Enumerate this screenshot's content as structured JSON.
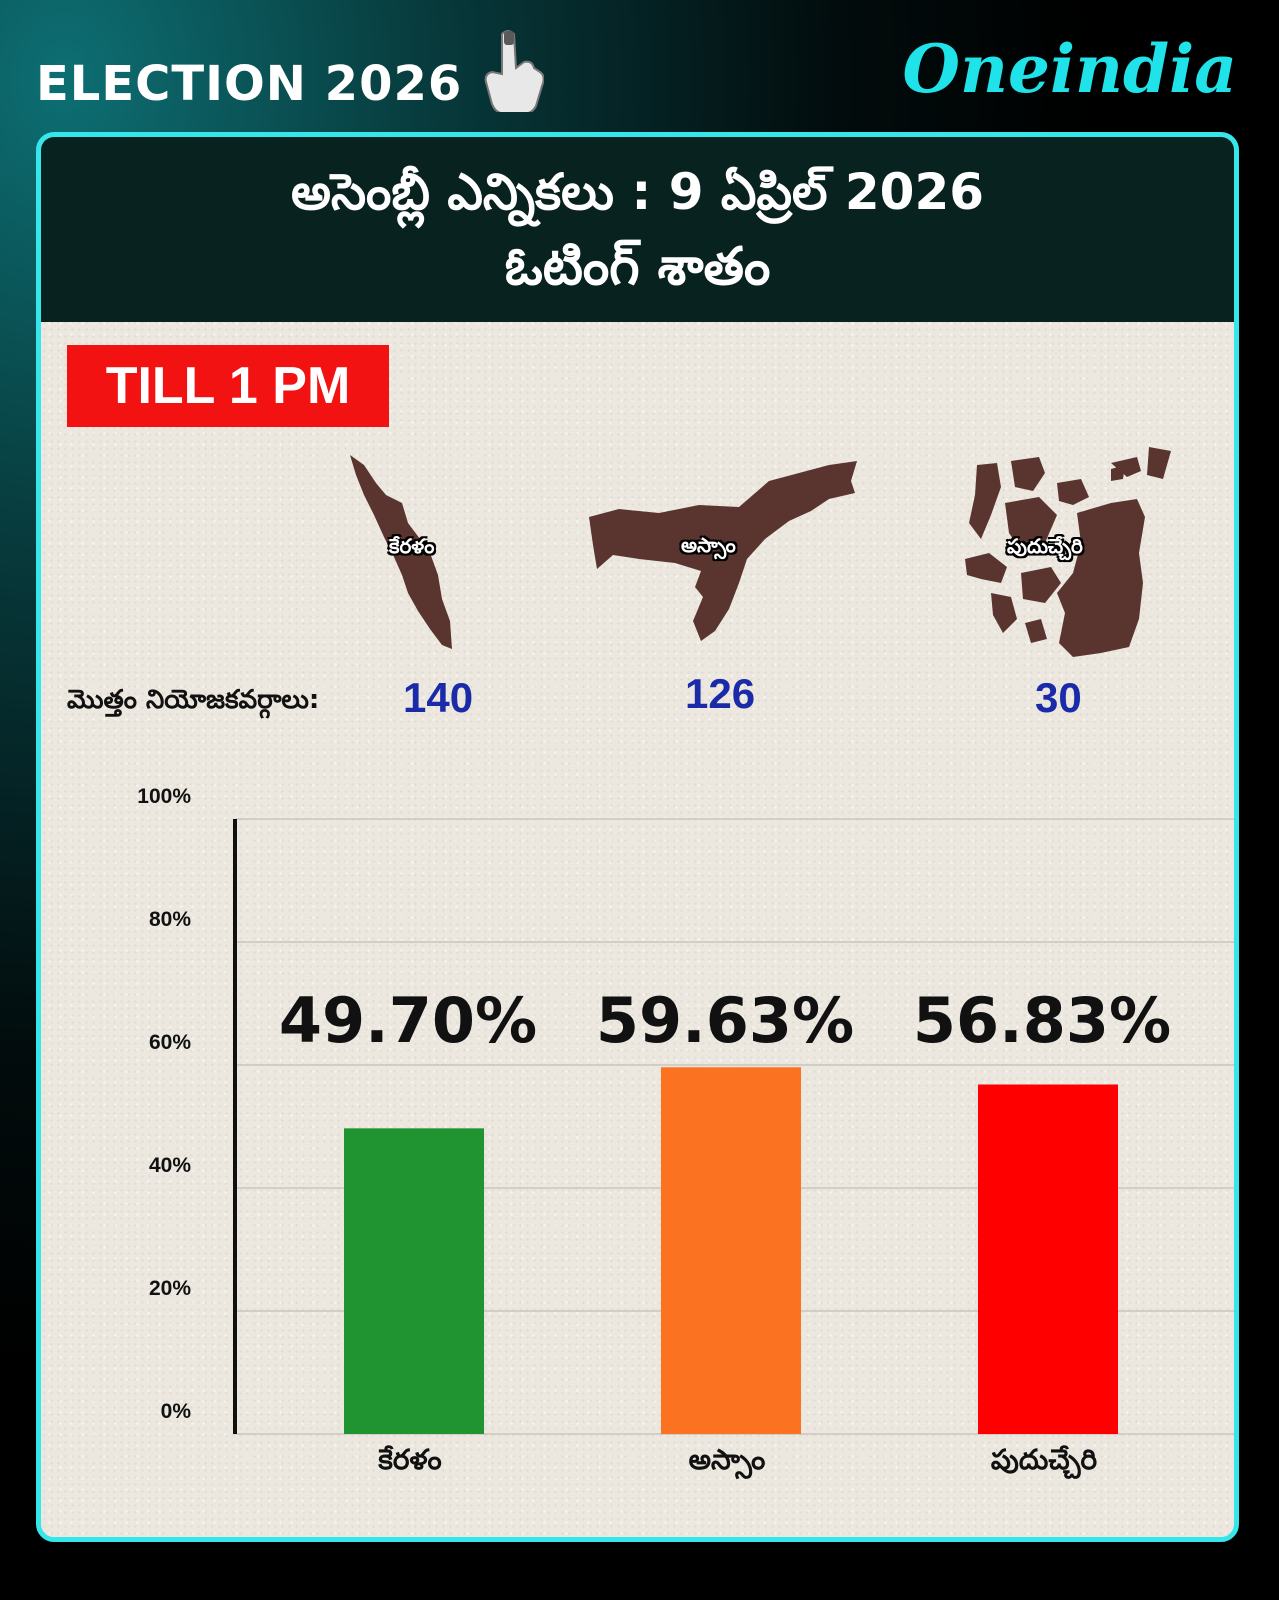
{
  "header": {
    "left_label": "ELECTION 2026",
    "brand": "Oneindia"
  },
  "banner": {
    "line1": "అసెంబ్లీ ఎన్నికలు :  9 ఏప్రిల్ 2026",
    "line2": "ఓటింగ్ శాతం"
  },
  "badge": "TILL 1 PM",
  "seats": {
    "label": "మొత్తం నియోజకవర్గాలు:",
    "states": [
      {
        "name": "కేరళం",
        "seats": "140"
      },
      {
        "name": "అస్సాం",
        "seats": "126"
      },
      {
        "name": "పుదుచ్చేరి",
        "seats": "30"
      }
    ]
  },
  "colors": {
    "accent": "#35e6ea",
    "banner_bg": "#082220",
    "badge": "#f21212",
    "map_fill": "#5a3530",
    "seat_number": "#1b2aa8",
    "bars": [
      "#1f9430",
      "#fb7321",
      "#ff0000"
    ]
  },
  "icons": [
    "voting-finger-icon",
    "kerala-map-icon",
    "assam-map-icon",
    "puducherry-map-icon"
  ],
  "chart_data": {
    "type": "bar",
    "categories": [
      "కేరళం",
      "అస్సాం",
      "పుదుచ్చేరి"
    ],
    "values": [
      49.7,
      59.63,
      56.83
    ],
    "data_labels": [
      "49.70%",
      "59.63%",
      "56.83%"
    ],
    "bar_colors": [
      "#1f9430",
      "#fb7321",
      "#ff0000"
    ],
    "ylim": [
      0,
      100
    ],
    "yticks": [
      0,
      20,
      40,
      60,
      80,
      100
    ],
    "ytick_labels": [
      "0%",
      "20%",
      "40%",
      "60%",
      "80%",
      "100%"
    ],
    "grid": true
  }
}
